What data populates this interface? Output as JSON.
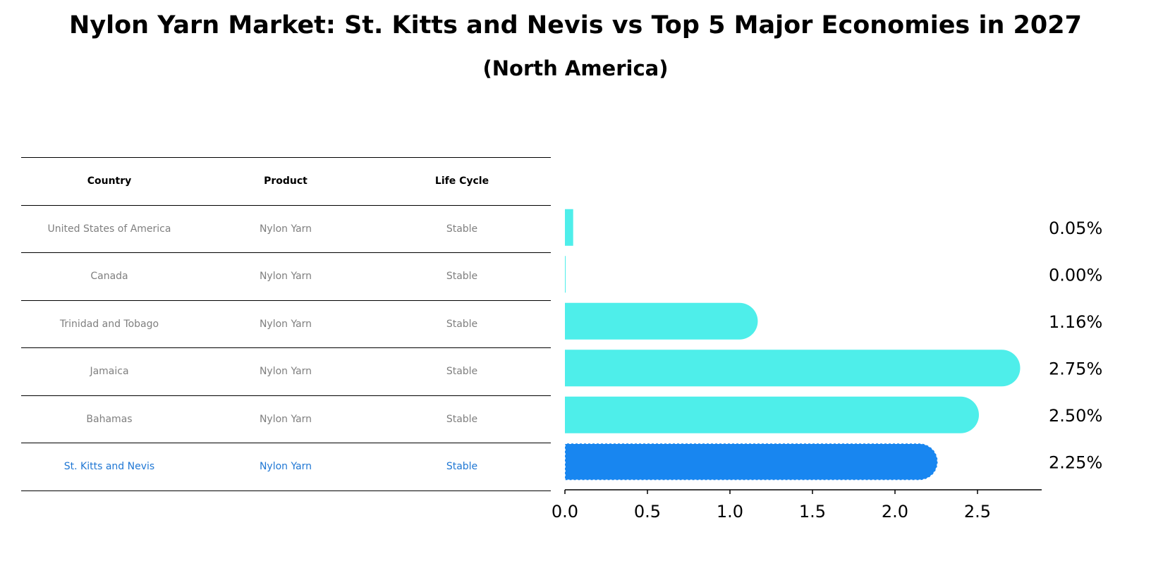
{
  "chart_data": {
    "type": "bar",
    "orientation": "horizontal",
    "title": "Nylon Yarn Market: St. Kitts and Nevis vs Top 5 Major Economies in 2027",
    "subtitle": "(North America)",
    "table": {
      "headers": [
        "Country",
        "Product",
        "Life Cycle"
      ],
      "rows": [
        [
          "United States of America",
          "Nylon Yarn",
          "Stable"
        ],
        [
          "Canada",
          "Nylon Yarn",
          "Stable"
        ],
        [
          "Trinidad and Tobago",
          "Nylon Yarn",
          "Stable"
        ],
        [
          "Jamaica",
          "Nylon Yarn",
          "Stable"
        ],
        [
          "Bahamas",
          "Nylon Yarn",
          "Stable"
        ],
        [
          "St. Kitts and Nevis",
          "Nylon Yarn",
          "Stable"
        ]
      ],
      "highlight_row": 5
    },
    "categories": [
      "United States of America",
      "Canada",
      "Trinidad and Tobago",
      "Jamaica",
      "Bahamas",
      "St. Kitts and Nevis"
    ],
    "values": [
      0.05,
      0.0,
      1.16,
      2.75,
      2.5,
      2.25
    ],
    "value_labels": [
      "0.05%",
      "0.00%",
      "1.16%",
      "2.75%",
      "2.50%",
      "2.25%"
    ],
    "xlim": [
      0,
      2.88
    ],
    "xticks": [
      0.0,
      0.5,
      1.0,
      1.5,
      2.0,
      2.5
    ],
    "xtick_labels": [
      "0.0",
      "0.5",
      "1.0",
      "1.5",
      "2.0",
      "2.5"
    ],
    "xlabel": "",
    "ylabel": "",
    "colors": {
      "default": "#4eeeea",
      "highlight": "#1886f0"
    }
  }
}
